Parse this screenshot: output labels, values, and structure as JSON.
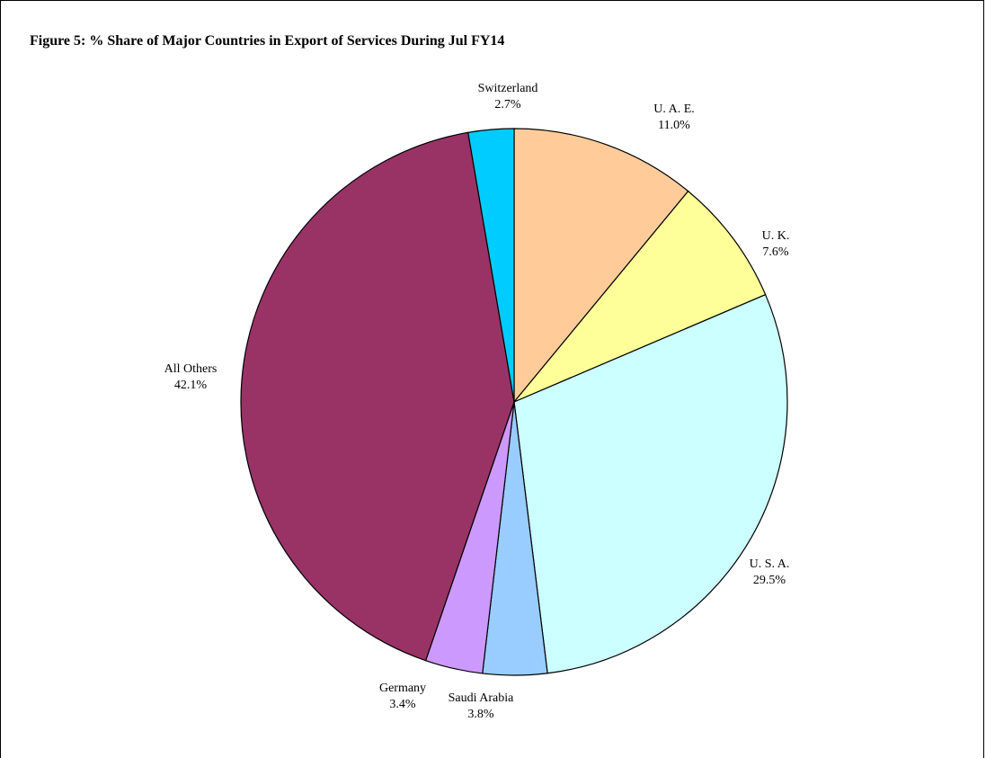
{
  "chart_data": {
    "type": "pie",
    "title": "Figure 5: % Share of Major Countries in Export of Services During Jul FY14",
    "slices": [
      {
        "label": "U. A. E.",
        "value": 11.0,
        "value_label": "11.0%",
        "color": "#FFCC99"
      },
      {
        "label": "U. K.",
        "value": 7.6,
        "value_label": "7.6%",
        "color": "#FFFF99"
      },
      {
        "label": "U. S. A.",
        "value": 29.5,
        "value_label": "29.5%",
        "color": "#CCFFFF"
      },
      {
        "label": "Saudi Arabia",
        "value": 3.8,
        "value_label": "3.8%",
        "color": "#99CCFF"
      },
      {
        "label": "Germany",
        "value": 3.4,
        "value_label": "3.4%",
        "color": "#CC99FF"
      },
      {
        "label": "All Others",
        "value": 42.1,
        "value_label": "42.1%",
        "color": "#993366"
      },
      {
        "label": "Switzerland",
        "value": 2.7,
        "value_label": "2.7%",
        "color": "#00CCFF"
      }
    ],
    "start_angle": "12 o'clock",
    "direction": "clockwise",
    "legend": "none (direct labels)"
  }
}
